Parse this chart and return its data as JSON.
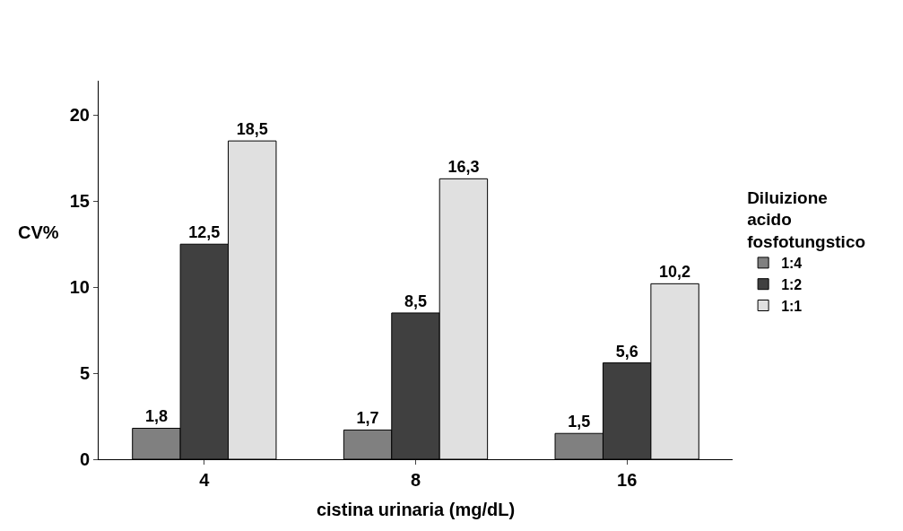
{
  "chart_data": {
    "type": "bar",
    "xlabel": "cistina urinaria (mg/dL)",
    "ylabel": "CV%",
    "legend_title": "Diluizione acido fosfotungstico",
    "categories": [
      "4",
      "8",
      "16"
    ],
    "series": [
      {
        "name": "1:4",
        "color": "#808080",
        "values": [
          1.8,
          1.7,
          1.5
        ],
        "value_labels": [
          "1,8",
          "1,7",
          "1,5"
        ]
      },
      {
        "name": "1:2",
        "color": "#404040",
        "values": [
          12.5,
          8.5,
          5.6
        ],
        "value_labels": [
          "12,5",
          "8,5",
          "5,6"
        ]
      },
      {
        "name": "1:1",
        "color": "#e0e0e0",
        "values": [
          18.5,
          16.3,
          10.2
        ],
        "value_labels": [
          "18,5",
          "16,3",
          "10,2"
        ]
      }
    ],
    "ylim": [
      0,
      22
    ],
    "yticks": [
      0,
      5,
      10,
      15,
      20
    ],
    "legend": "right"
  }
}
